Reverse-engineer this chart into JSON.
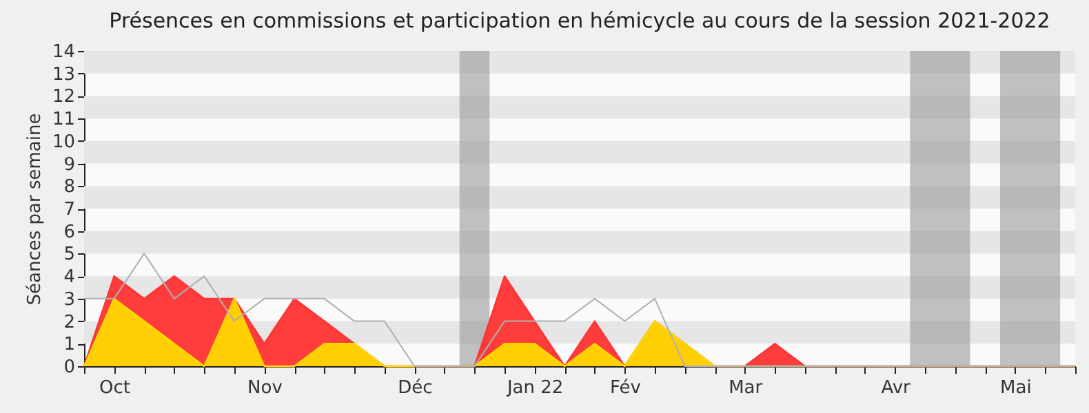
{
  "chart_data": {
    "type": "area",
    "title": "Présences en commissions et participation en hémicycle au cours de la session 2021-2022",
    "ylabel": "Séances par semaine",
    "categories": [
      null,
      "Oct",
      null,
      null,
      null,
      null,
      "Nov",
      null,
      null,
      null,
      null,
      "Déc",
      null,
      null,
      null,
      "Jan 22",
      null,
      null,
      "Fév",
      null,
      null,
      null,
      "Mar",
      null,
      null,
      null,
      null,
      "Avr",
      null,
      null,
      null,
      "Mai",
      null,
      null
    ],
    "series": [
      {
        "color": "#ff3333",
        "values": [
          0,
          4,
          3,
          4,
          3,
          3,
          1,
          3,
          2,
          1,
          0,
          0,
          0,
          0,
          4,
          2,
          0,
          2,
          0,
          2,
          1,
          0,
          0,
          1,
          0,
          0,
          0,
          0,
          0,
          0,
          0,
          0,
          0,
          0
        ]
      },
      {
        "color": "#ffd700",
        "values": [
          0,
          3,
          2,
          1,
          0,
          3,
          0,
          0,
          1,
          1,
          0,
          0,
          0,
          0,
          1,
          1,
          0,
          1,
          0,
          2,
          1,
          0,
          0,
          0,
          0,
          0,
          0,
          0,
          0,
          0,
          0,
          0,
          0,
          0
        ]
      },
      {
        "type": "line",
        "color": "#b0b0b0",
        "values": [
          3,
          3,
          5,
          3,
          4,
          2,
          3,
          3,
          3,
          2,
          2,
          0,
          0,
          0,
          2,
          2,
          2,
          3,
          2,
          3,
          0,
          0,
          0,
          0,
          0,
          0,
          0,
          0,
          0,
          0,
          0,
          0,
          0,
          0
        ]
      }
    ],
    "ylim": [
      0,
      14
    ],
    "yticks": [
      0,
      1,
      2,
      3,
      4,
      5,
      6,
      7,
      8,
      9,
      10,
      11,
      12,
      13,
      14
    ]
  }
}
